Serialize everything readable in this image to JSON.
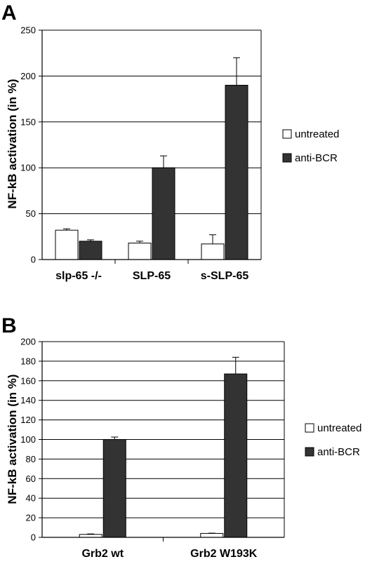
{
  "colors": {
    "untreated": "#ffffff",
    "anti_bcr": "#333333",
    "axis": "#000000",
    "grid": "#000000"
  },
  "chart_data": [
    {
      "panel": "A",
      "type": "bar",
      "categories": [
        "slp-65 -/-",
        "SLP-65",
        "s-SLP-65"
      ],
      "series": [
        {
          "name": "untreated",
          "values": [
            32,
            18,
            17
          ],
          "errors": [
            1.5,
            2,
            10
          ]
        },
        {
          "name": "anti-BCR",
          "values": [
            20,
            100,
            190
          ],
          "errors": [
            1.5,
            13,
            30
          ]
        }
      ],
      "ylabel": "NF-kB activation (in %)",
      "ylim": [
        0,
        250
      ],
      "yticks": [
        "0",
        "50",
        "100",
        "150",
        "200",
        "250"
      ],
      "grid": true,
      "legend": "right"
    },
    {
      "panel": "B",
      "type": "bar",
      "categories": [
        "Grb2 wt",
        "Grb2 W193K"
      ],
      "series": [
        {
          "name": "untreated",
          "values": [
            3,
            4
          ],
          "errors": [
            0.5,
            0.3
          ]
        },
        {
          "name": "anti-BCR",
          "values": [
            100,
            167
          ],
          "errors": [
            2.5,
            17
          ]
        }
      ],
      "ylabel": "NF-kB activation (in %)",
      "ylim": [
        0,
        200
      ],
      "yticks": [
        "0",
        "20",
        "40",
        "60",
        "80",
        "100",
        "120",
        "140",
        "160",
        "180",
        "200"
      ],
      "grid": true,
      "legend": "right"
    }
  ]
}
